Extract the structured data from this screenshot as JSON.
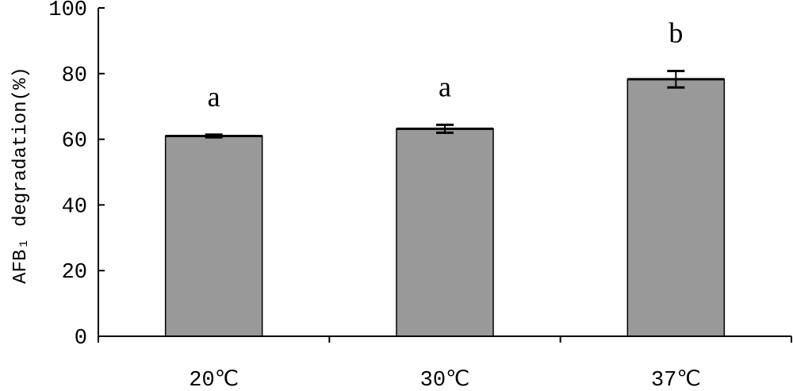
{
  "chart_data": {
    "type": "bar",
    "categories": [
      "20℃",
      "30℃",
      "37℃"
    ],
    "values": [
      61,
      63.2,
      78.3
    ],
    "errors": [
      0.4,
      1.2,
      2.5
    ],
    "significance_labels": [
      "a",
      "a",
      "b"
    ],
    "title": "",
    "xlabel": "",
    "ylabel": "AFB₁ degradation(%)",
    "ylim": [
      0,
      100
    ],
    "yticks": [
      "0",
      "20",
      "40",
      "60",
      "80",
      "100"
    ],
    "bar_color": "#999999",
    "grid": false,
    "legend": "none"
  }
}
